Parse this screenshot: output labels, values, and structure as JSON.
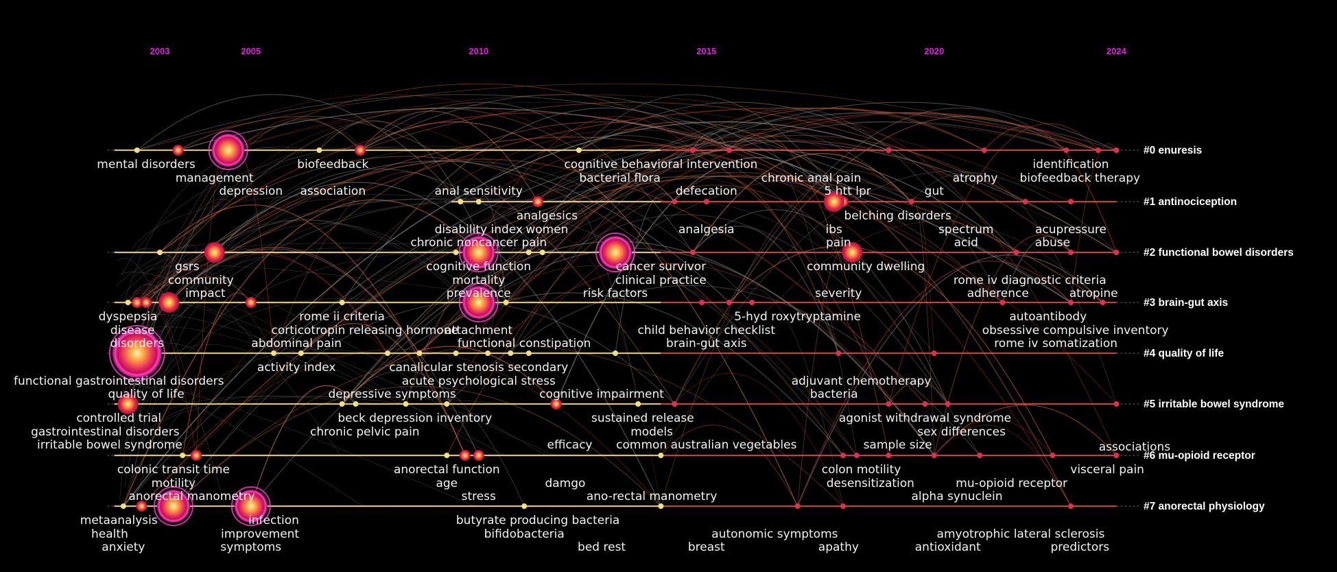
{
  "chart_data": {
    "type": "timeline",
    "x_axis": {
      "range": [
        2002,
        2024
      ],
      "tick_labels": [
        "2003",
        "2005",
        "2010",
        "2015",
        "2020",
        "2024"
      ],
      "tick_values": [
        2003,
        2005,
        2010,
        2015,
        2020,
        2024
      ]
    },
    "colors": {
      "tick_label": "#e020e0",
      "lane": "#ffe0a0",
      "lane_recent": "#e05050",
      "node": "#e83060",
      "label": "#f2f2f2"
    },
    "clusters": [
      {
        "label": "#0 enuresis",
        "start": 2002.0,
        "nodes": [
          [
            2002.5,
            1
          ],
          [
            2003.4,
            2
          ],
          [
            2004.5,
            4
          ],
          [
            2006.5,
            1
          ],
          [
            2007.4,
            2
          ],
          [
            2012.2,
            1
          ],
          [
            2014.7,
            1
          ],
          [
            2015.5,
            1
          ],
          [
            2019.0,
            1
          ],
          [
            2021.1,
            1
          ],
          [
            2022.9,
            1
          ],
          [
            2023.6,
            1
          ],
          [
            2024.0,
            1
          ]
        ],
        "keywords": [
          {
            "text": "mental disorders",
            "x": 2002.7,
            "row": 0
          },
          {
            "text": "biofeedback",
            "x": 2006.8,
            "row": 0
          },
          {
            "text": "cognitive behavioral intervention",
            "x": 2014.0,
            "row": 0
          },
          {
            "text": "identification",
            "x": 2023.0,
            "row": 0
          },
          {
            "text": "management",
            "x": 2004.2,
            "row": 1
          },
          {
            "text": "bacterial flora",
            "x": 2013.1,
            "row": 1
          },
          {
            "text": "chronic anal pain",
            "x": 2017.3,
            "row": 1
          },
          {
            "text": "atrophy",
            "x": 2020.9,
            "row": 1
          },
          {
            "text": "biofeedback therapy",
            "x": 2023.2,
            "row": 1
          },
          {
            "text": "depression",
            "x": 2005.0,
            "row": 2
          },
          {
            "text": "association",
            "x": 2006.8,
            "row": 2
          },
          {
            "text": "anal sensitivity",
            "x": 2010.0,
            "row": 2
          },
          {
            "text": "defecation",
            "x": 2015.0,
            "row": 2
          },
          {
            "text": "5 htt lpr",
            "x": 2018.1,
            "row": 2
          },
          {
            "text": "gut",
            "x": 2020.0,
            "row": 2
          }
        ]
      },
      {
        "label": "#1 antinociception",
        "start": 2009.4,
        "nodes": [
          [
            2009.6,
            1
          ],
          [
            2010.0,
            1
          ],
          [
            2011.3,
            2
          ],
          [
            2014.3,
            1
          ],
          [
            2015.0,
            1
          ],
          [
            2017.8,
            3
          ],
          [
            2018.0,
            2
          ],
          [
            2019.5,
            1
          ],
          [
            2022.0,
            1
          ],
          [
            2023.0,
            1
          ]
        ],
        "keywords": [
          {
            "text": "analgesics",
            "x": 2011.5,
            "row": 0
          },
          {
            "text": "belching disorders",
            "x": 2019.2,
            "row": 0
          },
          {
            "text": "disability index",
            "x": 2010.0,
            "row": 1
          },
          {
            "text": "women",
            "x": 2011.5,
            "row": 1
          },
          {
            "text": "analgesia",
            "x": 2015.0,
            "row": 1
          },
          {
            "text": "ibs",
            "x": 2017.8,
            "row": 1
          },
          {
            "text": "spectrum",
            "x": 2020.7,
            "row": 1
          },
          {
            "text": "acupressure",
            "x": 2023.0,
            "row": 1
          },
          {
            "text": "chronic noncancer pain",
            "x": 2010.0,
            "row": 2
          },
          {
            "text": "pain",
            "x": 2017.9,
            "row": 2
          },
          {
            "text": "acid",
            "x": 2020.7,
            "row": 2
          },
          {
            "text": "abuse",
            "x": 2022.6,
            "row": 2
          }
        ]
      },
      {
        "label": "#2 functional bowel disorders",
        "start": 2002.0,
        "nodes": [
          [
            2003.0,
            1
          ],
          [
            2004.2,
            3
          ],
          [
            2009.5,
            1
          ],
          [
            2010.0,
            4
          ],
          [
            2011.1,
            1
          ],
          [
            2011.4,
            1
          ],
          [
            2013.0,
            4
          ],
          [
            2014.7,
            1
          ],
          [
            2018.2,
            3
          ],
          [
            2021.8,
            1
          ],
          [
            2023.0,
            1
          ],
          [
            2024.0,
            1
          ]
        ],
        "keywords": [
          {
            "text": "gsrs",
            "x": 2003.6,
            "row": 0
          },
          {
            "text": "cognitive function",
            "x": 2010.0,
            "row": 0
          },
          {
            "text": "cancer survivor",
            "x": 2014.0,
            "row": 0
          },
          {
            "text": "community dwelling",
            "x": 2018.5,
            "row": 0
          },
          {
            "text": "community",
            "x": 2003.9,
            "row": 1
          },
          {
            "text": "mortality",
            "x": 2010.0,
            "row": 1
          },
          {
            "text": "clinical practice",
            "x": 2014.0,
            "row": 1
          },
          {
            "text": "rome iv diagnostic criteria",
            "x": 2022.1,
            "row": 1
          },
          {
            "text": "impact",
            "x": 2004.0,
            "row": 2
          },
          {
            "text": "prevalence",
            "x": 2010.0,
            "row": 2
          },
          {
            "text": "risk factors",
            "x": 2013.0,
            "row": 2
          },
          {
            "text": "severity",
            "x": 2017.9,
            "row": 2
          },
          {
            "text": "adherence",
            "x": 2021.4,
            "row": 2
          },
          {
            "text": "atropine",
            "x": 2023.5,
            "row": 2
          }
        ]
      },
      {
        "label": "#3 brain-gut axis",
        "start": 2002.0,
        "nodes": [
          [
            2002.3,
            1
          ],
          [
            2002.5,
            2
          ],
          [
            2002.7,
            2
          ],
          [
            2003.2,
            3
          ],
          [
            2005.0,
            2
          ],
          [
            2007.0,
            1
          ],
          [
            2009.8,
            1
          ],
          [
            2010.0,
            4
          ],
          [
            2010.6,
            1
          ],
          [
            2014.9,
            1
          ],
          [
            2015.5,
            1
          ],
          [
            2016.0,
            1
          ],
          [
            2021.5,
            1
          ],
          [
            2023.0,
            1
          ],
          [
            2023.7,
            1
          ]
        ],
        "keywords": [
          {
            "text": "dyspepsia",
            "x": 2002.3,
            "row": 0
          },
          {
            "text": "rome ii criteria",
            "x": 2007.0,
            "row": 0
          },
          {
            "text": "5-hyd roxytryptamine",
            "x": 2017.0,
            "row": 0
          },
          {
            "text": "autoantibody",
            "x": 2022.5,
            "row": 0
          },
          {
            "text": "disease",
            "x": 2002.4,
            "row": 1
          },
          {
            "text": "corticotropin releasing hormone",
            "x": 2007.5,
            "row": 1
          },
          {
            "text": "attachment",
            "x": 2010.0,
            "row": 1
          },
          {
            "text": "child behavior checklist",
            "x": 2015.0,
            "row": 1
          },
          {
            "text": "obsessive compulsive inventory",
            "x": 2023.1,
            "row": 1
          },
          {
            "text": "disorders",
            "x": 2002.5,
            "row": 2
          },
          {
            "text": "abdominal pain",
            "x": 2006.0,
            "row": 2
          },
          {
            "text": "functional constipation",
            "x": 2011.0,
            "row": 2
          },
          {
            "text": "brain-gut axis",
            "x": 2015.0,
            "row": 2
          },
          {
            "text": "rome iv",
            "x": 2021.8,
            "row": 2
          },
          {
            "text": "somatization",
            "x": 2023.2,
            "row": 2
          }
        ]
      },
      {
        "label": "#4 quality of life",
        "start": 2002.0,
        "nodes": [
          [
            2002.5,
            5
          ],
          [
            2005.5,
            1
          ],
          [
            2006.1,
            1
          ],
          [
            2008.0,
            1
          ],
          [
            2008.7,
            1
          ],
          [
            2009.5,
            1
          ],
          [
            2010.2,
            1
          ],
          [
            2010.7,
            1
          ],
          [
            2011.1,
            1
          ],
          [
            2013.0,
            1
          ],
          [
            2017.9,
            1
          ],
          [
            2020.0,
            1
          ]
        ],
        "keywords": [
          {
            "text": "activity index",
            "x": 2006.0,
            "row": 0
          },
          {
            "text": "canalicular stenosis secondary",
            "x": 2010.0,
            "row": 0
          },
          {
            "text": "functional gastrointestinal disorders",
            "x": 2002.1,
            "row": 1
          },
          {
            "text": "acute psychological stress",
            "x": 2010.0,
            "row": 1
          },
          {
            "text": "adjuvant chemotherapy",
            "x": 2018.4,
            "row": 1
          },
          {
            "text": "quality of life",
            "x": 2002.7,
            "row": 2
          },
          {
            "text": "depressive symptoms",
            "x": 2008.1,
            "row": 2
          },
          {
            "text": "cognitive impairment",
            "x": 2012.7,
            "row": 2
          },
          {
            "text": "bacteria",
            "x": 2017.8,
            "row": 2
          }
        ]
      },
      {
        "label": "#5 irritable bowel syndrome",
        "start": 2002.0,
        "nodes": [
          [
            2002.3,
            3
          ],
          [
            2007.0,
            1
          ],
          [
            2007.3,
            1
          ],
          [
            2008.4,
            1
          ],
          [
            2009.3,
            1
          ],
          [
            2011.7,
            2
          ],
          [
            2013.5,
            1
          ],
          [
            2014.3,
            1
          ],
          [
            2019.0,
            1
          ],
          [
            2019.8,
            1
          ],
          [
            2020.3,
            1
          ],
          [
            2024.0,
            1
          ]
        ],
        "keywords": [
          {
            "text": "controlled trial",
            "x": 2002.1,
            "row": 0
          },
          {
            "text": "beck depression inventory",
            "x": 2008.6,
            "row": 0
          },
          {
            "text": "sustained release",
            "x": 2013.6,
            "row": 0
          },
          {
            "text": "agonist withdrawal syndrome",
            "x": 2019.8,
            "row": 0
          },
          {
            "text": "gastrointestinal disorders",
            "x": 2001.8,
            "row": 1
          },
          {
            "text": "chronic pelvic pain",
            "x": 2007.5,
            "row": 1
          },
          {
            "text": "models",
            "x": 2013.8,
            "row": 1
          },
          {
            "text": "sex differences",
            "x": 2020.6,
            "row": 1
          },
          {
            "text": "irritable bowel syndrome",
            "x": 2001.9,
            "row": 2
          },
          {
            "text": "efficacy",
            "x": 2012.0,
            "row": 2
          },
          {
            "text": "common australian vegetables",
            "x": 2015.0,
            "row": 2
          },
          {
            "text": "sample size",
            "x": 2019.2,
            "row": 2
          }
        ]
      },
      {
        "label": "#6 mu-opioid receptor",
        "start": 2002.0,
        "nodes": [
          [
            2003.5,
            1
          ],
          [
            2003.8,
            2
          ],
          [
            2009.3,
            1
          ],
          [
            2009.7,
            2
          ],
          [
            2010.0,
            2
          ],
          [
            2014.0,
            1
          ],
          [
            2018.0,
            1
          ],
          [
            2018.3,
            1
          ],
          [
            2019.0,
            1
          ],
          [
            2020.0,
            1
          ],
          [
            2021.0,
            1
          ],
          [
            2022.6,
            1
          ],
          [
            2024.0,
            1
          ]
        ],
        "keywords": [
          {
            "text": "associations",
            "x": 2024.4,
            "row": -1
          },
          {
            "text": "colonic transit time",
            "x": 2003.3,
            "row": 0
          },
          {
            "text": "anorectal function",
            "x": 2009.3,
            "row": 0
          },
          {
            "text": "colon motility",
            "x": 2018.4,
            "row": 0
          },
          {
            "text": "visceral pain",
            "x": 2023.8,
            "row": 0
          },
          {
            "text": "motility",
            "x": 2003.3,
            "row": 1
          },
          {
            "text": "age",
            "x": 2009.3,
            "row": 1
          },
          {
            "text": "damgo",
            "x": 2011.9,
            "row": 1
          },
          {
            "text": "desensitization",
            "x": 2018.6,
            "row": 1
          },
          {
            "text": "mu-opioid receptor",
            "x": 2021.7,
            "row": 1
          },
          {
            "text": "anorectal manometry",
            "x": 2003.7,
            "row": 2
          },
          {
            "text": "stress",
            "x": 2010.0,
            "row": 2
          },
          {
            "text": "ano-rectal manometry",
            "x": 2013.8,
            "row": 2
          },
          {
            "text": "alpha synuclein",
            "x": 2020.5,
            "row": 2
          }
        ]
      },
      {
        "label": "#7 anorectal physiology",
        "start": 2002.0,
        "nodes": [
          [
            2002.2,
            1
          ],
          [
            2002.6,
            2
          ],
          [
            2003.3,
            4
          ],
          [
            2005.0,
            4
          ],
          [
            2011.0,
            1
          ],
          [
            2014.0,
            1
          ],
          [
            2017.0,
            1
          ],
          [
            2018.0,
            1
          ],
          [
            2023.0,
            1
          ]
        ],
        "keywords": [
          {
            "text": "metaanalysis",
            "x": 2002.1,
            "row": 0
          },
          {
            "text": "infection",
            "x": 2005.5,
            "row": 0
          },
          {
            "text": "butyrate producing bacteria",
            "x": 2011.3,
            "row": 0
          },
          {
            "text": "health",
            "x": 2001.9,
            "row": 1
          },
          {
            "text": "improvement",
            "x": 2005.2,
            "row": 1
          },
          {
            "text": "bifidobacteria",
            "x": 2011.0,
            "row": 1
          },
          {
            "text": "autonomic symptoms",
            "x": 2016.5,
            "row": 1
          },
          {
            "text": "amyotrophic lateral sclerosis",
            "x": 2021.9,
            "row": 1
          },
          {
            "text": "anxiety",
            "x": 2002.2,
            "row": 2
          },
          {
            "text": "symptoms",
            "x": 2005.0,
            "row": 2
          },
          {
            "text": "bed rest",
            "x": 2012.7,
            "row": 2
          },
          {
            "text": "breast",
            "x": 2015.0,
            "row": 2
          },
          {
            "text": "apathy",
            "x": 2017.9,
            "row": 2
          },
          {
            "text": "antioxidant",
            "x": 2020.3,
            "row": 2
          },
          {
            "text": "predictors",
            "x": 2023.2,
            "row": 2
          }
        ]
      }
    ]
  }
}
